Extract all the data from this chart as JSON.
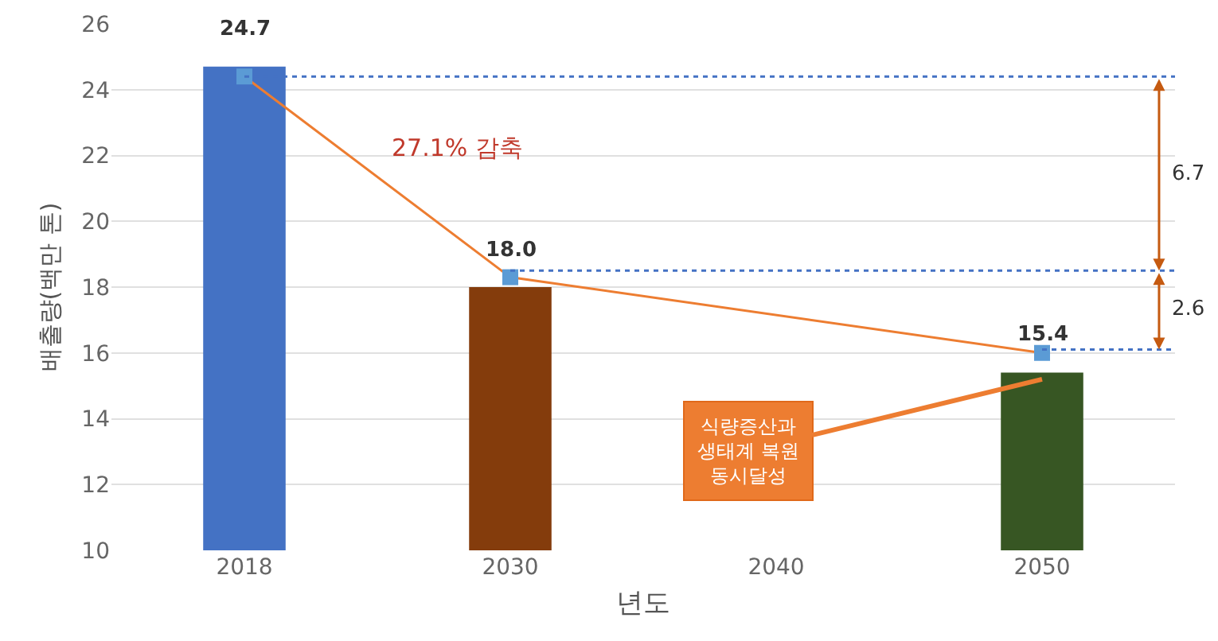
{
  "chart_data": {
    "type": "bar",
    "xlabel": "년도",
    "ylabel": "배출량(백만 톤)",
    "categories": [
      "2018",
      "2030",
      "2040",
      "2050"
    ],
    "series": [
      {
        "values": [
          24.7,
          18.0,
          null,
          15.4
        ],
        "colors": [
          "#4472c4",
          "#843c0c",
          null,
          "#375623"
        ],
        "value_labels": [
          "24.7",
          "18.0",
          null,
          "15.4"
        ]
      },
      {
        "type": "line",
        "color": "#ed7d31",
        "marker": "square",
        "values": [
          24.4,
          18.3,
          null,
          16.0
        ]
      }
    ],
    "ylim": [
      10,
      26
    ],
    "yticks": [
      10,
      12,
      14,
      16,
      18,
      20,
      22,
      24,
      26
    ],
    "grid": "y",
    "ref_lines": [
      {
        "axis": "y",
        "value": 24.4,
        "color": "#4472c4",
        "line_style": "dotted"
      },
      {
        "axis": "y",
        "value": 18.5,
        "color": "#4472c4",
        "line_style": "dotted"
      },
      {
        "axis": "y",
        "value": 16.1,
        "color": "#4472c4",
        "line_style": "dotted"
      }
    ],
    "annotations": [
      "27.1% 감축",
      "6.7",
      "2.6",
      {
        "text": "식량증산과\n생태계 복원\n동시달성",
        "x": "2050",
        "y": 15.2
      }
    ]
  }
}
